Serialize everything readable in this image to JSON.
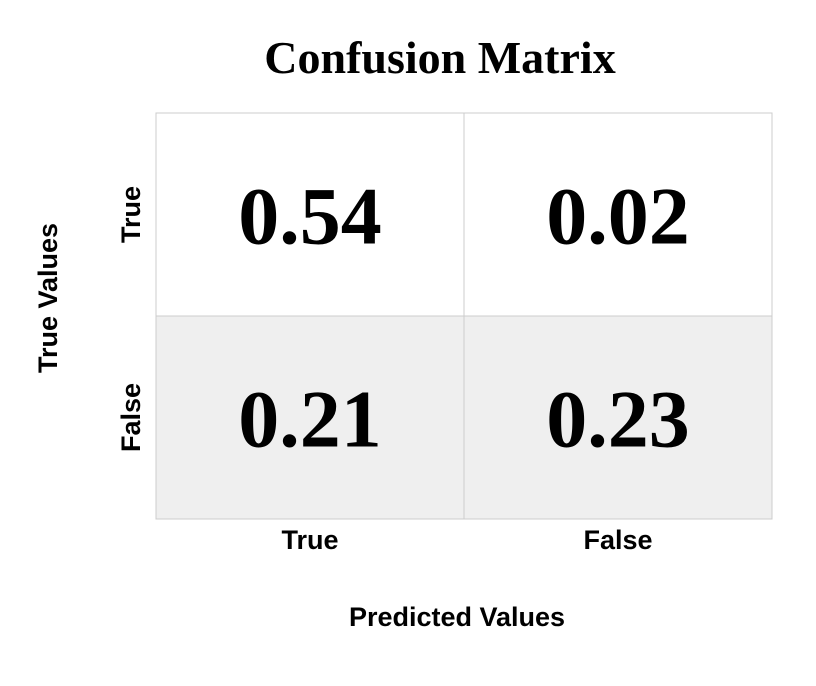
{
  "chart_data": {
    "type": "heatmap",
    "title": "Confusion Matrix",
    "xlabel": "Predicted Values",
    "ylabel": "True Values",
    "x_categories": [
      "True",
      "False"
    ],
    "y_categories": [
      "True",
      "False"
    ],
    "values": [
      [
        0.54,
        0.02
      ],
      [
        0.21,
        0.23
      ]
    ],
    "colors": {
      "low": "#ffffff",
      "high": "#efefef",
      "gridline": "#cccccc",
      "text": "#000000"
    },
    "grid": true
  }
}
